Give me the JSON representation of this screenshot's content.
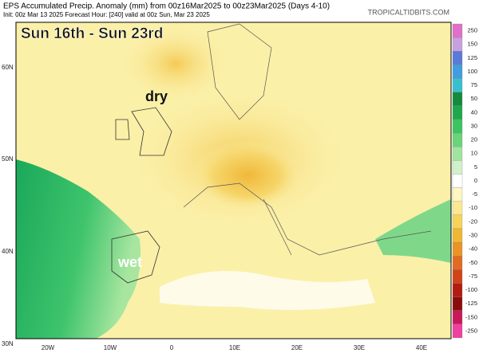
{
  "header": {
    "line1": "EPS Accumulated Precip. Anomaly (mm) from 00z16Mar2025 to 00z23Mar2025 (Days 4-10)",
    "line2": "Init: 00z Mar 13 2025   Forecast Hour: [240]   valid at 00z Sun, Mar 23 2025",
    "credit": "TROPICALTIDBITS.COM"
  },
  "map": {
    "overlay_title": "Sun 16th - Sun 23rd",
    "labels": [
      "dry",
      "wet"
    ],
    "latitude_labels": [
      "60N",
      "50N",
      "40N",
      "30N"
    ],
    "longitude_labels": [
      "20W",
      "10W",
      "0",
      "10E",
      "20E",
      "30E",
      "40E"
    ]
  },
  "colorbar": {
    "labels": [
      "250",
      "150",
      "125",
      "100",
      "75",
      "50",
      "40",
      "30",
      "20",
      "10",
      "5",
      "0",
      "-5",
      "-10",
      "-20",
      "-30",
      "-40",
      "-50",
      "-75",
      "-100",
      "-125",
      "-150",
      "-250"
    ]
  }
}
